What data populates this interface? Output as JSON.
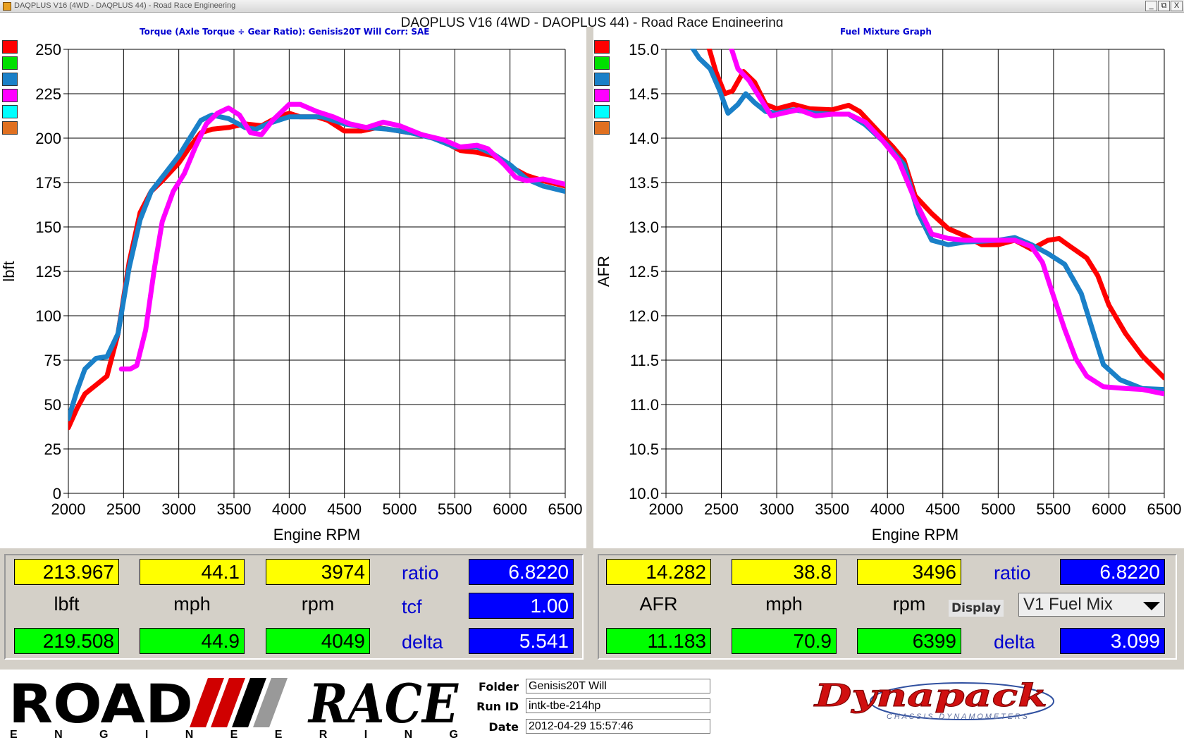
{
  "window": {
    "title": "DAQPLUS V16 (4WD - DAQPLUS 44) - Road Race Engineering",
    "heading": "DAQPLUS V16 (4WD - DAQPLUS 44) - Road Race Engineering",
    "btn_min": "_",
    "btn_restore": "⧉",
    "btn_close": "X"
  },
  "colors": {
    "run1": "#ff0000",
    "run2": "#00e000",
    "run3": "#1a80c8",
    "run4": "#ff00ff",
    "run5": "#00ffff",
    "run6": "#e07020"
  },
  "left_panel": {
    "subtitle": "Torque (Axle Torque ÷ Gear Ratio): Genisis20T Will     Corr: SAE",
    "readout": {
      "cursor1_value": "213.967",
      "cursor1_speed": "44.1",
      "cursor1_rpm": "3974",
      "unit": "lbft",
      "speed_unit": "mph",
      "rpm_unit": "rpm",
      "cursor2_value": "219.508",
      "cursor2_speed": "44.9",
      "cursor2_rpm": "4049",
      "ratio_label": "ratio",
      "ratio_value": "6.8220",
      "tcf_label": "tcf",
      "tcf_value": "1.00",
      "delta_label": "delta",
      "delta_value": "5.541"
    }
  },
  "right_panel": {
    "subtitle": "Fuel Mixture Graph",
    "readout": {
      "cursor1_value": "14.282",
      "cursor1_speed": "38.8",
      "cursor1_rpm": "3496",
      "unit": "AFR",
      "speed_unit": "mph",
      "rpm_unit": "rpm",
      "cursor2_value": "11.183",
      "cursor2_speed": "70.9",
      "cursor2_rpm": "6399",
      "ratio_label": "ratio",
      "ratio_value": "6.8220",
      "display_label": "Display",
      "display_select": "V1 Fuel Mix",
      "delta_label": "delta",
      "delta_value": "3.099"
    }
  },
  "footer": {
    "logo_main_left": "ROAD",
    "logo_main_right": "RACE",
    "logo_sub": "E N G I N E E R I N G",
    "folder_label": "Folder",
    "folder_value": "Genisis20T Will",
    "runid_label": "Run ID",
    "runid_value": "intk-tbe-214hp",
    "date_label": "Date",
    "date_value": "2012-04-29 15:57:46",
    "brand": "Dynapack",
    "brand_sub": "CHASSIS DYNAMOMETERS"
  },
  "chart_data": [
    {
      "type": "line",
      "title": "Torque (Axle Torque ÷ Gear Ratio): Genisis20T Will     Corr: SAE",
      "xlabel": "Engine RPM",
      "ylabel": "lbft",
      "xlim": [
        2000,
        6500
      ],
      "ylim": [
        0,
        250
      ],
      "xticks": [
        "2000",
        "2500",
        "3000",
        "3500",
        "4000",
        "4500",
        "5000",
        "5500",
        "6000",
        "6500"
      ],
      "yticks": [
        "0",
        "25",
        "50",
        "75",
        "100",
        "125",
        "150",
        "175",
        "200",
        "225",
        "250"
      ],
      "grid": true,
      "series": [
        {
          "color": "#ff0000",
          "points": [
            [
              2000,
              37
            ],
            [
              2080,
              48
            ],
            [
              2150,
              56
            ],
            [
              2250,
              61
            ],
            [
              2350,
              66
            ],
            [
              2450,
              90
            ],
            [
              2550,
              130
            ],
            [
              2650,
              158
            ],
            [
              2750,
              170
            ],
            [
              2850,
              176
            ],
            [
              3000,
              186
            ],
            [
              3100,
              195
            ],
            [
              3200,
              203
            ],
            [
              3300,
              205
            ],
            [
              3450,
              206
            ],
            [
              3600,
              208
            ],
            [
              3750,
              207
            ],
            [
              3900,
              212
            ],
            [
              4000,
              214
            ],
            [
              4100,
              212
            ],
            [
              4250,
              212
            ],
            [
              4350,
              210
            ],
            [
              4500,
              204
            ],
            [
              4650,
              204
            ],
            [
              4800,
              206
            ],
            [
              5000,
              204
            ],
            [
              5200,
              202
            ],
            [
              5400,
              198
            ],
            [
              5550,
              193
            ],
            [
              5700,
              192
            ],
            [
              5850,
              190
            ],
            [
              6000,
              184
            ],
            [
              6150,
              179
            ],
            [
              6300,
              176
            ],
            [
              6500,
              173
            ]
          ]
        },
        {
          "color": "#1a80c8",
          "points": [
            [
              2000,
              42
            ],
            [
              2080,
              58
            ],
            [
              2150,
              70
            ],
            [
              2250,
              76
            ],
            [
              2350,
              77
            ],
            [
              2450,
              90
            ],
            [
              2550,
              127
            ],
            [
              2650,
              154
            ],
            [
              2750,
              170
            ],
            [
              2850,
              178
            ],
            [
              3000,
              190
            ],
            [
              3100,
              200
            ],
            [
              3200,
              210
            ],
            [
              3300,
              213
            ],
            [
              3450,
              211
            ],
            [
              3600,
              206
            ],
            [
              3700,
              205
            ],
            [
              3800,
              208
            ],
            [
              4000,
              212
            ],
            [
              4150,
              212
            ],
            [
              4300,
              212
            ],
            [
              4500,
              208
            ],
            [
              4700,
              206
            ],
            [
              4900,
              205
            ],
            [
              5100,
              203
            ],
            [
              5300,
              200
            ],
            [
              5500,
              195
            ],
            [
              5700,
              195
            ],
            [
              5850,
              191
            ],
            [
              6000,
              185
            ],
            [
              6150,
              177
            ],
            [
              6300,
              173
            ],
            [
              6500,
              170
            ]
          ]
        },
        {
          "color": "#ff00ff",
          "points": [
            [
              2480,
              70
            ],
            [
              2560,
              70
            ],
            [
              2620,
              72
            ],
            [
              2700,
              92
            ],
            [
              2780,
              127
            ],
            [
              2850,
              153
            ],
            [
              2950,
              170
            ],
            [
              3050,
              180
            ],
            [
              3150,
              195
            ],
            [
              3250,
              208
            ],
            [
              3350,
              214
            ],
            [
              3450,
              217
            ],
            [
              3550,
              213
            ],
            [
              3650,
              203
            ],
            [
              3750,
              202
            ],
            [
              3850,
              210
            ],
            [
              4000,
              219
            ],
            [
              4100,
              219
            ],
            [
              4250,
              215
            ],
            [
              4400,
              212
            ],
            [
              4550,
              208
            ],
            [
              4700,
              206
            ],
            [
              4850,
              209
            ],
            [
              5000,
              207
            ],
            [
              5200,
              202
            ],
            [
              5400,
              199
            ],
            [
              5550,
              195
            ],
            [
              5700,
              196
            ],
            [
              5800,
              194
            ],
            [
              5950,
              185
            ],
            [
              6050,
              178
            ],
            [
              6150,
              176
            ],
            [
              6300,
              177
            ],
            [
              6500,
              174
            ]
          ]
        }
      ]
    },
    {
      "type": "line",
      "title": "Fuel Mixture Graph",
      "xlabel": "Engine RPM",
      "ylabel": "AFR",
      "xlim": [
        2000,
        6500
      ],
      "ylim": [
        10.0,
        15.0
      ],
      "xticks": [
        "2000",
        "2500",
        "3000",
        "3500",
        "4000",
        "4500",
        "5000",
        "5500",
        "6000",
        "6500"
      ],
      "yticks": [
        "10.0",
        "10.5",
        "11.0",
        "11.5",
        "12.0",
        "12.5",
        "13.0",
        "13.5",
        "14.0",
        "14.5",
        "15.0"
      ],
      "grid": true,
      "series": [
        {
          "color": "#ff0000",
          "points": [
            [
              2380,
              15.05
            ],
            [
              2450,
              14.75
            ],
            [
              2530,
              14.5
            ],
            [
              2600,
              14.53
            ],
            [
              2700,
              14.75
            ],
            [
              2800,
              14.63
            ],
            [
              2900,
              14.38
            ],
            [
              3000,
              14.33
            ],
            [
              3150,
              14.38
            ],
            [
              3300,
              14.33
            ],
            [
              3500,
              14.32
            ],
            [
              3650,
              14.37
            ],
            [
              3750,
              14.3
            ],
            [
              3900,
              14.1
            ],
            [
              4050,
              13.9
            ],
            [
              4150,
              13.75
            ],
            [
              4250,
              13.35
            ],
            [
              4400,
              13.15
            ],
            [
              4550,
              12.98
            ],
            [
              4700,
              12.9
            ],
            [
              4850,
              12.8
            ],
            [
              5000,
              12.8
            ],
            [
              5150,
              12.85
            ],
            [
              5300,
              12.75
            ],
            [
              5450,
              12.85
            ],
            [
              5550,
              12.87
            ],
            [
              5650,
              12.78
            ],
            [
              5800,
              12.65
            ],
            [
              5900,
              12.45
            ],
            [
              6000,
              12.12
            ],
            [
              6150,
              11.8
            ],
            [
              6300,
              11.55
            ],
            [
              6500,
              11.3
            ]
          ]
        },
        {
          "color": "#1a80c8",
          "points": [
            [
              2220,
              15.05
            ],
            [
              2300,
              14.9
            ],
            [
              2400,
              14.78
            ],
            [
              2480,
              14.55
            ],
            [
              2560,
              14.28
            ],
            [
              2650,
              14.38
            ],
            [
              2720,
              14.5
            ],
            [
              2800,
              14.4
            ],
            [
              2900,
              14.3
            ],
            [
              3000,
              14.28
            ],
            [
              3150,
              14.32
            ],
            [
              3350,
              14.28
            ],
            [
              3500,
              14.27
            ],
            [
              3650,
              14.27
            ],
            [
              3800,
              14.15
            ],
            [
              4000,
              13.92
            ],
            [
              4150,
              13.7
            ],
            [
              4280,
              13.15
            ],
            [
              4400,
              12.85
            ],
            [
              4550,
              12.8
            ],
            [
              4700,
              12.83
            ],
            [
              4850,
              12.84
            ],
            [
              5000,
              12.85
            ],
            [
              5150,
              12.88
            ],
            [
              5300,
              12.8
            ],
            [
              5450,
              12.7
            ],
            [
              5600,
              12.58
            ],
            [
              5750,
              12.25
            ],
            [
              5850,
              11.85
            ],
            [
              5950,
              11.45
            ],
            [
              6100,
              11.28
            ],
            [
              6300,
              11.18
            ],
            [
              6500,
              11.17
            ]
          ]
        },
        {
          "color": "#ff00ff",
          "points": [
            [
              2580,
              15.05
            ],
            [
              2650,
              14.78
            ],
            [
              2750,
              14.65
            ],
            [
              2850,
              14.45
            ],
            [
              2950,
              14.25
            ],
            [
              3050,
              14.28
            ],
            [
              3200,
              14.32
            ],
            [
              3350,
              14.25
            ],
            [
              3500,
              14.27
            ],
            [
              3650,
              14.27
            ],
            [
              3800,
              14.18
            ],
            [
              3950,
              13.98
            ],
            [
              4100,
              13.75
            ],
            [
              4250,
              13.3
            ],
            [
              4400,
              12.92
            ],
            [
              4550,
              12.87
            ],
            [
              4700,
              12.85
            ],
            [
              4850,
              12.85
            ],
            [
              5000,
              12.85
            ],
            [
              5150,
              12.85
            ],
            [
              5300,
              12.78
            ],
            [
              5400,
              12.6
            ],
            [
              5500,
              12.22
            ],
            [
              5600,
              11.85
            ],
            [
              5700,
              11.52
            ],
            [
              5800,
              11.32
            ],
            [
              5950,
              11.2
            ],
            [
              6150,
              11.18
            ],
            [
              6300,
              11.17
            ],
            [
              6500,
              11.12
            ]
          ]
        }
      ]
    }
  ]
}
